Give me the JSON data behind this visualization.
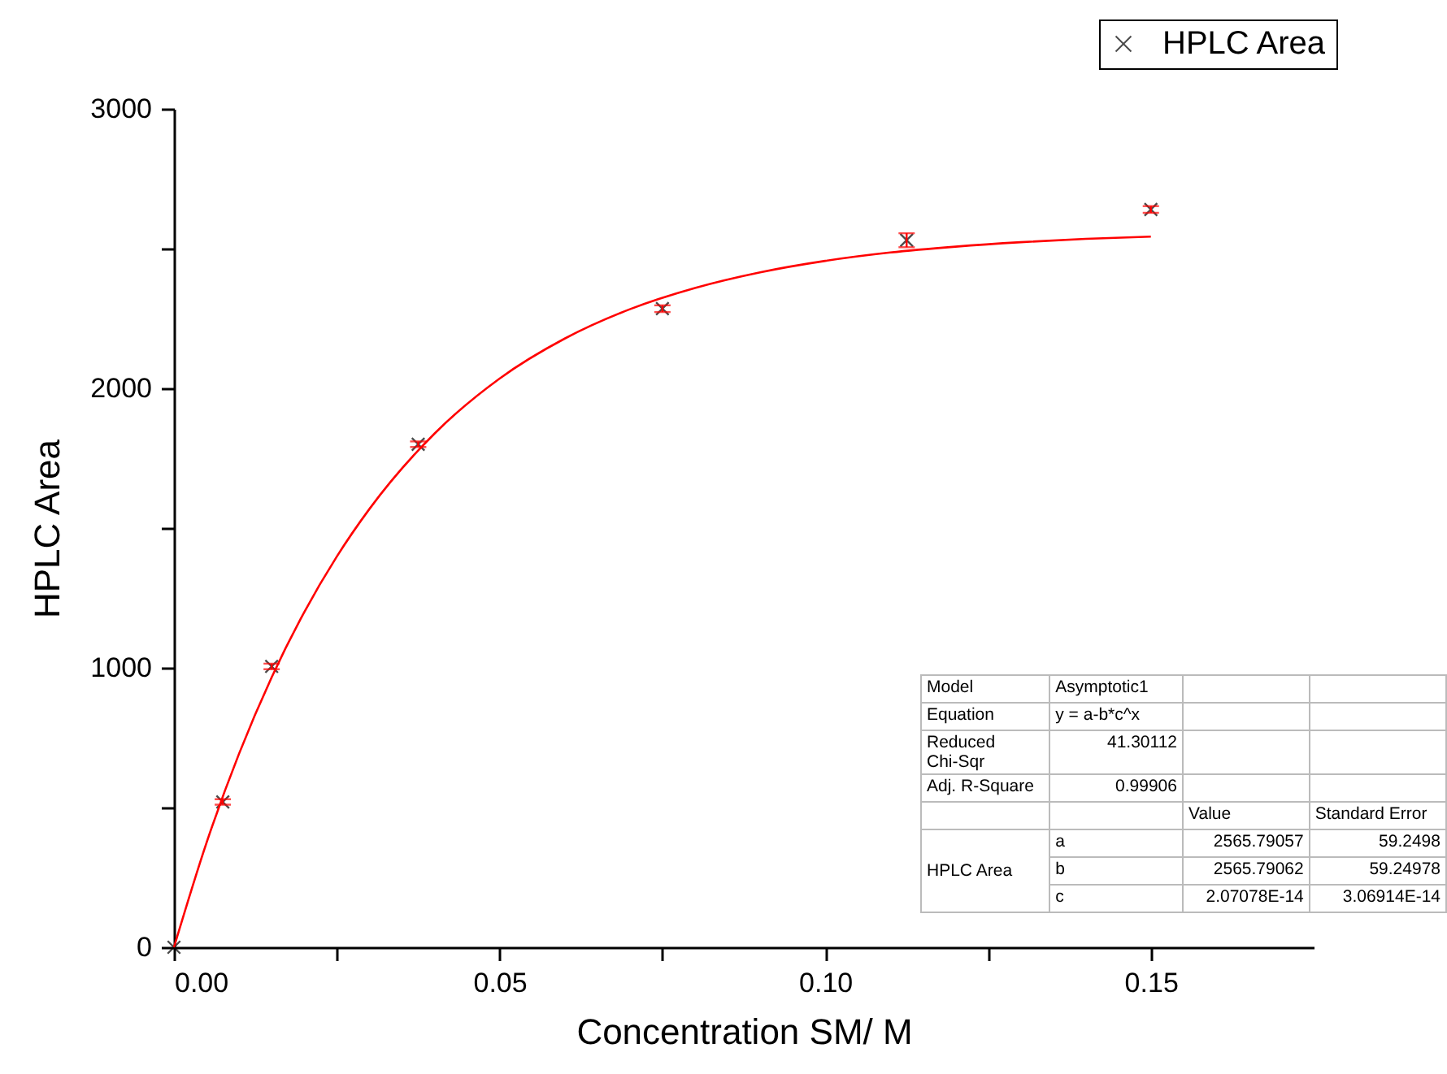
{
  "chart_data": {
    "type": "scatter",
    "xlabel": "Concentration SM/ M",
    "ylabel": "HPLC Area",
    "xlim": [
      0,
      0.175
    ],
    "xticks": [
      {
        "value": 0,
        "label": "0.00"
      },
      {
        "value": 0.025,
        "label": null
      },
      {
        "value": 0.05,
        "label": "0.05"
      },
      {
        "value": 0.075,
        "label": null
      },
      {
        "value": 0.1,
        "label": "0.10"
      },
      {
        "value": 0.125,
        "label": null
      },
      {
        "value": 0.15,
        "label": "0.15"
      }
    ],
    "ylim": [
      0,
      3000
    ],
    "yticks": [
      0,
      {
        "value": 500,
        "label": null
      },
      1000,
      {
        "value": 1500,
        "label": null
      },
      2000,
      {
        "value": 2500,
        "label": null
      },
      3000
    ],
    "grid": false,
    "legend": "top right",
    "series": [
      {
        "name": "HPLC Area",
        "color": "#000000",
        "marker": "cross",
        "x": [
          0,
          0.0075,
          0.015,
          0.0375,
          0.075,
          0.1125,
          0.15
        ],
        "values": [
          0,
          520,
          1005,
          1800,
          2285,
          2530,
          2640
        ],
        "errors": [
          null,
          10,
          10,
          10,
          12,
          25,
          12
        ]
      },
      {
        "type": "line",
        "color": "#ff0000",
        "x": [
          0,
          0.005,
          0.01,
          0.015,
          0.02,
          0.025,
          0.03,
          0.04,
          0.05,
          0.06,
          0.07,
          0.08,
          0.09,
          0.1,
          0.11,
          0.12,
          0.13,
          0.14,
          0.15
        ],
        "values": [
          0,
          374,
          693,
          966,
          1199,
          1398,
          1568,
          1838,
          2035,
          2178,
          2283,
          2359,
          2415,
          2456,
          2486,
          2507,
          2523,
          2535,
          2543
        ]
      }
    ],
    "annotations": [
      "Model",
      "Asymptotic1",
      "Equation",
      "y = a-b*c^x",
      "Reduced Chi-Sqr",
      "41.30112",
      "Adj. R-Square",
      "0.99906",
      "Value",
      "Standard Error",
      "HPLC Area",
      "a",
      "2565.79057",
      "59.2498",
      "b",
      "2565.79062",
      "59.24978",
      "c",
      "2.07078E-14",
      "3.06914E-14"
    ]
  }
}
